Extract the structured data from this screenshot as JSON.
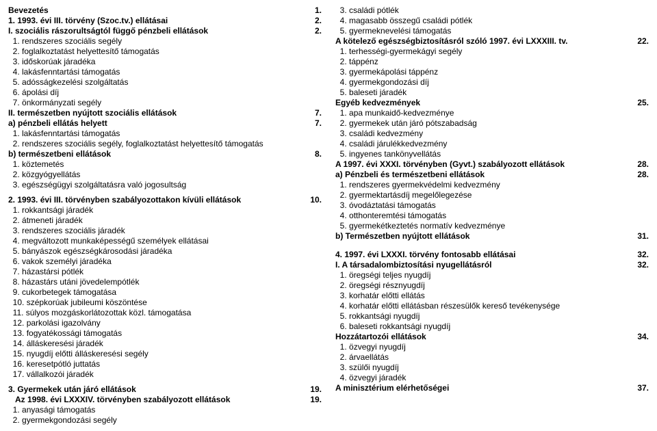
{
  "left": [
    {
      "text": "Bevezetés",
      "num": "1.",
      "bold": true
    },
    {
      "text": "1. 1993. évi III. törvény (Szoc.tv.) ellátásai",
      "num": "2.",
      "bold": true
    },
    {
      "text": "I. szociális rászorultságtól függő pénzbeli ellátások",
      "num": "2.",
      "bold": true
    },
    {
      "text": "  1. rendszeres szociális segély"
    },
    {
      "text": "  2. foglalkoztatást helyettesítő támogatás"
    },
    {
      "text": "  3. időskorúak járadéka"
    },
    {
      "text": "  4. lakásfenntartási támogatás"
    },
    {
      "text": "  5. adósságkezelési szolgáltatás"
    },
    {
      "text": "  6. ápolási díj"
    },
    {
      "text": "  7. önkormányzati segély"
    },
    {
      "text": "II. természetben nyújtott szociális ellátások",
      "num": "7.",
      "bold": true
    },
    {
      "text": "a) pénzbeli ellátás helyett",
      "num": "7.",
      "bold": true
    },
    {
      "text": "  1. lakásfenntartási támogatás"
    },
    {
      "text": "  2. rendszeres szociális segély, foglalkoztatást helyettesítő támogatás"
    },
    {
      "text": "b) természetbeni ellátások",
      "num": "8.",
      "bold": true
    },
    {
      "text": "  1. köztemetés"
    },
    {
      "text": "  2. közgyógyellátás"
    },
    {
      "text": "  3. egészségügyi szolgáltatásra való jogosultság"
    },
    {
      "spacer": true
    },
    {
      "text": "2. 1993. évi III. törvényben szabályozottakon kívüli ellátások",
      "num": "10.",
      "bold": true
    },
    {
      "text": "  1. rokkantsági járadék"
    },
    {
      "text": "  2. átmeneti járadék"
    },
    {
      "text": "  3. rendszeres szociális járadék"
    },
    {
      "text": "  4. megváltozott munkaképességű személyek ellátásai"
    },
    {
      "text": "  5. bányászok egészségkárosodási járadéka"
    },
    {
      "text": "  6. vakok személyi járadéka"
    },
    {
      "text": "  7. házastársi pótlék"
    },
    {
      "text": "  8. házastárs utáni jövedelempótlék"
    },
    {
      "text": "  9. cukorbetegek támogatása"
    },
    {
      "text": "  10. szépkorúak jubileumi köszöntése"
    },
    {
      "text": "  11. súlyos mozgáskorlátozottak közl. támogatása"
    },
    {
      "text": "  12. parkolási igazolvány"
    },
    {
      "text": "  13. fogyatékossági támogatás"
    },
    {
      "text": "  14. álláskeresési járadék"
    },
    {
      "text": "  15. nyugdíj előtti álláskeresési segély"
    },
    {
      "text": "  16. keresetpótló juttatás"
    },
    {
      "text": "  17. vállalkozói járadék"
    },
    {
      "spacer": true
    },
    {
      "text": "3. Gyermekek után járó ellátások",
      "num": "19.",
      "bold": true
    },
    {
      "text": "   Az 1998. évi LXXXIV. törvényben szabályozott ellátások",
      "num": "19.",
      "bold": true
    },
    {
      "text": "  1. anyasági támogatás"
    },
    {
      "text": "  2. gyermekgondozási segély"
    }
  ],
  "right": [
    {
      "text": "  3. családi pótlék"
    },
    {
      "text": "  4. magasabb összegű családi pótlék"
    },
    {
      "text": "  5. gyermeknevelési támogatás"
    },
    {
      "text": "A kötelező egészségbiztosításról szóló 1997. évi LXXXIII. tv.",
      "num": "22.",
      "bold": true
    },
    {
      "text": "  1. terhességi-gyermekágyi segély"
    },
    {
      "text": "  2. táppénz"
    },
    {
      "text": "  3. gyermekápolási táppénz"
    },
    {
      "text": "  4. gyermekgondozási díj"
    },
    {
      "text": "  5. baleseti járadék"
    },
    {
      "text": "Egyéb kedvezmények",
      "num": "25.",
      "bold": true
    },
    {
      "text": "  1. apa munkaidő-kedvezménye"
    },
    {
      "text": "  2. gyermekek után járó pótszabadság"
    },
    {
      "text": "  3. családi kedvezmény"
    },
    {
      "text": "  4. családi járulékkedvezmény"
    },
    {
      "text": "  5. ingyenes tankönyvellátás"
    },
    {
      "text": "A 1997. évi XXXI. törvényben (Gyvt.) szabályozott ellátások",
      "num": "28.",
      "bold": true
    },
    {
      "segments": [
        {
          "t": "a) Pénzbeli",
          "b": true
        },
        {
          "t": " és természetbeni "
        },
        {
          "t": "ellátások",
          "b": true
        }
      ],
      "num": "28.",
      "bold": true
    },
    {
      "text": "  1. rendszeres gyermekvédelmi kedvezmény"
    },
    {
      "text": "  2. gyermektartásdíj megelőlegezése"
    },
    {
      "text": "  3. óvodáztatási támogatás"
    },
    {
      "text": "  4. otthonteremtési támogatás"
    },
    {
      "text": "  5. gyermekétkeztetés normatív kedvezménye"
    },
    {
      "text": "b) Természetben nyújtott ellátások",
      "num": "31.",
      "bold": true
    },
    {
      "spacer": true
    },
    {
      "text": "4. 1997. évi LXXXI. törvény fontosabb ellátásai",
      "num": "32.",
      "bold": true
    },
    {
      "text": "I. A társadalombiztosítási nyugellátásról",
      "num": "32.",
      "bold": true
    },
    {
      "text": "  1. öregségi teljes nyugdíj"
    },
    {
      "text": "  2. öregségi résznyugdíj"
    },
    {
      "text": "  3. korhatár előtti ellátás"
    },
    {
      "text": "  4. korhatár előtti ellátásban részesülők kereső tevékenysége"
    },
    {
      "text": "  5. rokkantsági nyugdíj"
    },
    {
      "text": "  6. baleseti rokkantsági nyugdíj"
    },
    {
      "text": "Hozzátartozói ellátások",
      "num": "34.",
      "bold": true
    },
    {
      "text": "  1. özvegyi nyugdíj"
    },
    {
      "text": "  2. árvaellátás"
    },
    {
      "text": "  3. szülői nyugdíj"
    },
    {
      "text": "  4. özvegyi járadék"
    },
    {
      "text": "A minisztérium elérhetőségei",
      "num": "37.",
      "bold": true
    }
  ]
}
